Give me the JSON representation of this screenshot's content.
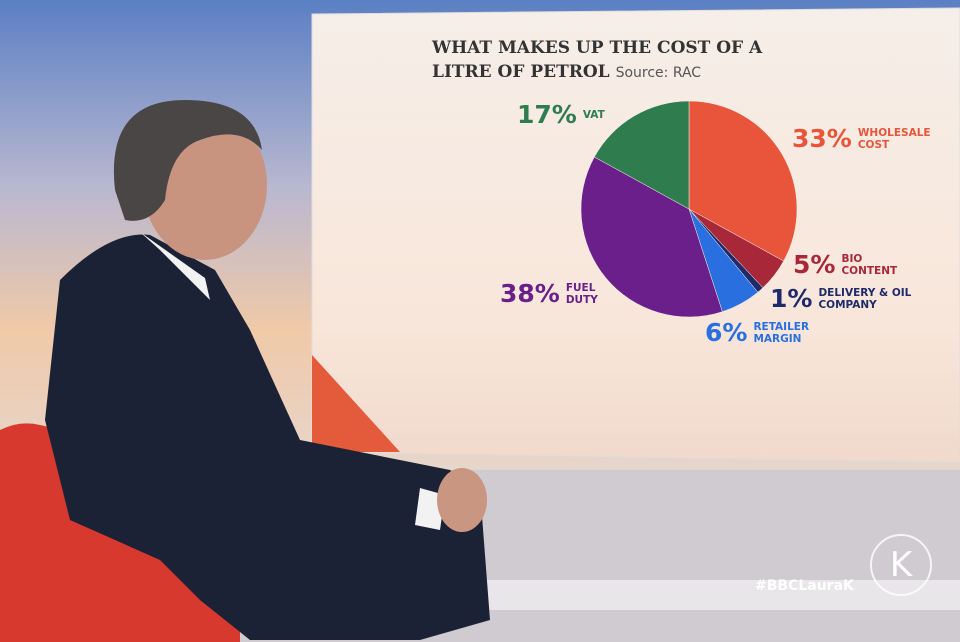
{
  "chart_data": {
    "type": "pie",
    "title": "WHAT MAKES UP THE COST OF A LITRE OF PETROL",
    "source": "Source: RAC",
    "categories": [
      "WHOLESALE COST",
      "BIO CONTENT",
      "DELIVERY & OIL COMPANY",
      "RETAILER MARGIN",
      "FUEL DUTY",
      "VAT"
    ],
    "values": [
      33,
      5,
      1,
      6,
      38,
      17
    ],
    "value_labels": [
      "33%",
      "5%",
      "1%",
      "6%",
      "38%",
      "17%"
    ],
    "colors": [
      "#e8553a",
      "#a8283a",
      "#1f2a6b",
      "#2a6fe0",
      "#6a1f8a",
      "#2f7d4f"
    ]
  },
  "watermark": "#BBCLauraK",
  "logo": "K"
}
